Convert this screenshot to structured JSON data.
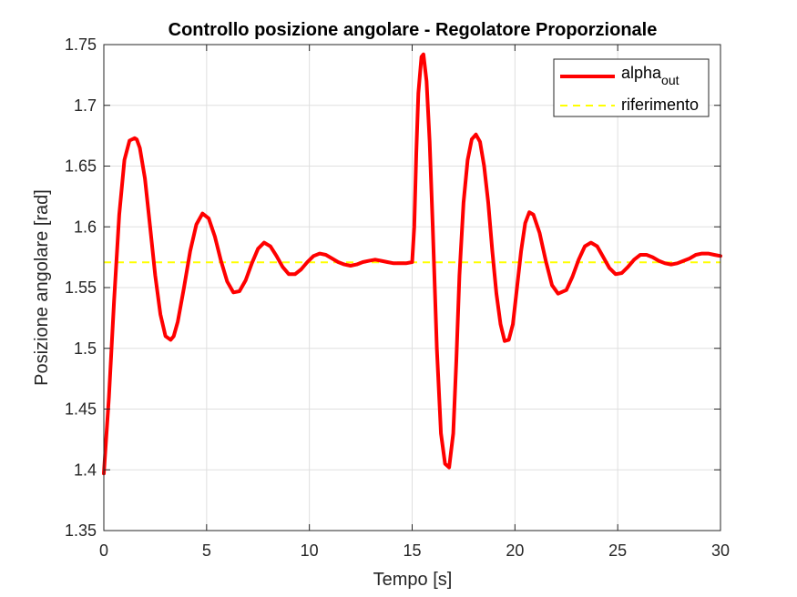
{
  "chart_data": {
    "type": "line",
    "title": "Controllo posizione angolare - Regolatore Proporzionale",
    "xlabel": "Tempo [s]",
    "ylabel": "Posizione angolare [rad]",
    "xlim": [
      0,
      30
    ],
    "ylim": [
      1.35,
      1.75
    ],
    "xticks": [
      0,
      5,
      10,
      15,
      20,
      25,
      30
    ],
    "xtick_labels": [
      "0",
      "5",
      "10",
      "15",
      "20",
      "25",
      "30"
    ],
    "yticks": [
      1.35,
      1.4,
      1.45,
      1.5,
      1.55,
      1.6,
      1.65,
      1.7,
      1.75
    ],
    "ytick_labels": [
      "1.35",
      "1.4",
      "1.45",
      "1.5",
      "1.55",
      "1.6",
      "1.65",
      "1.7",
      "1.75"
    ],
    "grid": true,
    "legend_position": "top-right",
    "series": [
      {
        "name_main": "alpha",
        "name_sub": "out",
        "color": "#ff0000",
        "style": "solid",
        "x": [
          0,
          0.25,
          0.5,
          0.75,
          1.0,
          1.25,
          1.5,
          1.6,
          1.75,
          2.0,
          2.25,
          2.5,
          2.75,
          3.0,
          3.25,
          3.4,
          3.6,
          3.9,
          4.2,
          4.5,
          4.8,
          5.1,
          5.4,
          5.7,
          6.0,
          6.3,
          6.6,
          6.9,
          7.2,
          7.5,
          7.8,
          8.1,
          8.4,
          8.7,
          9.0,
          9.3,
          9.6,
          9.9,
          10.2,
          10.5,
          10.8,
          11.1,
          11.4,
          11.7,
          12.0,
          12.3,
          12.6,
          12.9,
          13.2,
          13.5,
          13.8,
          14.1,
          14.4,
          14.7,
          15.0,
          15.1,
          15.2,
          15.3,
          15.45,
          15.55,
          15.7,
          15.85,
          16.0,
          16.2,
          16.4,
          16.6,
          16.8,
          17.0,
          17.15,
          17.3,
          17.5,
          17.7,
          17.9,
          18.1,
          18.3,
          18.5,
          18.7,
          18.9,
          19.1,
          19.3,
          19.5,
          19.7,
          19.9,
          20.1,
          20.3,
          20.5,
          20.7,
          20.9,
          21.2,
          21.5,
          21.8,
          22.1,
          22.5,
          22.8,
          23.1,
          23.4,
          23.7,
          24.0,
          24.3,
          24.6,
          24.9,
          25.2,
          25.5,
          25.8,
          26.1,
          26.4,
          26.7,
          27.0,
          27.3,
          27.6,
          27.9,
          28.2,
          28.5,
          28.8,
          29.1,
          29.4,
          29.7,
          30.0
        ],
        "y": [
          1.397,
          1.46,
          1.54,
          1.61,
          1.655,
          1.671,
          1.673,
          1.672,
          1.665,
          1.64,
          1.6,
          1.56,
          1.528,
          1.51,
          1.507,
          1.51,
          1.522,
          1.55,
          1.58,
          1.602,
          1.611,
          1.607,
          1.592,
          1.572,
          1.555,
          1.546,
          1.547,
          1.556,
          1.57,
          1.582,
          1.587,
          1.584,
          1.576,
          1.567,
          1.561,
          1.561,
          1.565,
          1.571,
          1.576,
          1.578,
          1.577,
          1.574,
          1.571,
          1.569,
          1.568,
          1.569,
          1.571,
          1.572,
          1.573,
          1.572,
          1.571,
          1.57,
          1.57,
          1.57,
          1.571,
          1.6,
          1.66,
          1.71,
          1.74,
          1.742,
          1.72,
          1.67,
          1.6,
          1.5,
          1.43,
          1.405,
          1.402,
          1.43,
          1.49,
          1.56,
          1.62,
          1.655,
          1.672,
          1.676,
          1.67,
          1.65,
          1.62,
          1.58,
          1.545,
          1.52,
          1.506,
          1.507,
          1.52,
          1.55,
          1.58,
          1.603,
          1.612,
          1.61,
          1.595,
          1.572,
          1.552,
          1.545,
          1.548,
          1.559,
          1.573,
          1.584,
          1.587,
          1.584,
          1.575,
          1.566,
          1.561,
          1.562,
          1.567,
          1.573,
          1.577,
          1.577,
          1.575,
          1.572,
          1.57,
          1.569,
          1.57,
          1.572,
          1.574,
          1.577,
          1.578,
          1.578,
          1.577,
          1.576
        ]
      },
      {
        "name": "riferimento",
        "color": "#ffff00",
        "style": "dashed",
        "x": [
          0,
          30
        ],
        "y": [
          1.5708,
          1.5708
        ]
      }
    ]
  }
}
